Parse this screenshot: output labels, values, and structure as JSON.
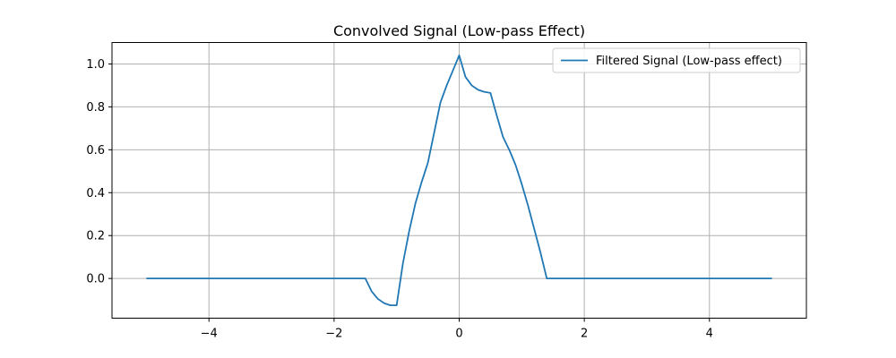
{
  "chart_data": {
    "type": "line",
    "title": "Convolved Signal (Low-pass Effect)",
    "xlabel": "",
    "ylabel": "",
    "xlim": [
      -5.55,
      5.55
    ],
    "ylim": [
      -0.185,
      1.1
    ],
    "xticks": [
      -4,
      -2,
      0,
      2,
      4
    ],
    "xtick_labels": [
      "−4",
      "−2",
      "0",
      "2",
      "4"
    ],
    "yticks": [
      0.0,
      0.2,
      0.4,
      0.6,
      0.8,
      1.0
    ],
    "ytick_labels": [
      "0.0",
      "0.2",
      "0.4",
      "0.6",
      "0.8",
      "1.0"
    ],
    "grid": true,
    "legend_position": "top-right",
    "series": [
      {
        "name": "Filtered Signal (Low-pass effect)",
        "color": "#1f77b4",
        "x": [
          -5.0,
          -1.5,
          -1.4,
          -1.3,
          -1.2,
          -1.1,
          -1.0,
          -0.9,
          -0.8,
          -0.7,
          -0.6,
          -0.5,
          -0.4,
          -0.3,
          -0.2,
          -0.1,
          0.0,
          0.1,
          0.2,
          0.3,
          0.4,
          0.5,
          0.6,
          0.7,
          0.8,
          0.9,
          1.0,
          1.1,
          1.2,
          1.3,
          1.4,
          1.5,
          5.0
        ],
        "y": [
          0.0,
          0.0,
          -0.06,
          -0.095,
          -0.115,
          -0.125,
          -0.125,
          0.07,
          0.22,
          0.35,
          0.45,
          0.54,
          0.68,
          0.82,
          0.9,
          0.97,
          1.04,
          0.94,
          0.9,
          0.88,
          0.87,
          0.865,
          0.76,
          0.66,
          0.6,
          0.53,
          0.44,
          0.34,
          0.23,
          0.12,
          0.0,
          0.0,
          0.0
        ]
      }
    ]
  }
}
